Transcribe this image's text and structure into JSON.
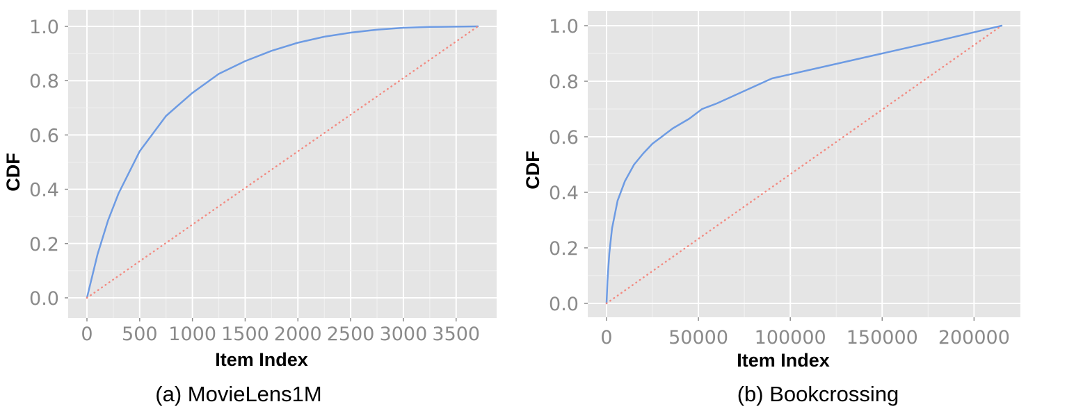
{
  "figure": {
    "captions": [
      "(a) MovieLens1M",
      "(b) Bookcrossing"
    ]
  },
  "chart_data": [
    {
      "type": "line",
      "title": "",
      "caption": "(a) MovieLens1M",
      "xlabel": "Item Index",
      "ylabel": "CDF",
      "xlim": [
        0,
        3706
      ],
      "ylim": [
        0,
        1
      ],
      "xticks": [
        0,
        500,
        1000,
        1500,
        2000,
        2500,
        3000,
        3500
      ],
      "xtick_labels": [
        "0",
        "500",
        "1000",
        "1500",
        "2000",
        "2500",
        "3000",
        "3500"
      ],
      "yticks": [
        0,
        0.2,
        0.4,
        0.6,
        0.8,
        1
      ],
      "ytick_labels": [
        "0.0",
        "0.2",
        "0.4",
        "0.6",
        "0.8",
        "1.0"
      ],
      "grid": true,
      "background": "#e5e5e5",
      "series": [
        {
          "style": "solid",
          "color": "#6d9be3",
          "x": [
            0,
            100,
            200,
            300,
            500,
            750,
            1000,
            1250,
            1500,
            1750,
            2000,
            2250,
            2500,
            2750,
            3000,
            3250,
            3500,
            3706
          ],
          "y": [
            0,
            0.16,
            0.285,
            0.385,
            0.54,
            0.67,
            0.755,
            0.825,
            0.872,
            0.91,
            0.94,
            0.962,
            0.977,
            0.988,
            0.995,
            0.998,
            0.999,
            1.0
          ]
        },
        {
          "style": "dotted",
          "color": "#f28b82",
          "x": [
            0,
            3706
          ],
          "y": [
            0,
            1
          ]
        }
      ]
    },
    {
      "type": "line",
      "title": "",
      "caption": "(b) Bookcrossing",
      "xlabel": "Item Index",
      "ylabel": "CDF",
      "xlim": [
        0,
        215000
      ],
      "ylim": [
        0,
        1
      ],
      "xticks": [
        0,
        50000,
        100000,
        150000,
        200000
      ],
      "xtick_labels": [
        "0",
        "50000",
        "100000",
        "150000",
        "200000"
      ],
      "yticks": [
        0,
        0.2,
        0.4,
        0.6,
        0.8,
        1
      ],
      "ytick_labels": [
        "0.0",
        "0.2",
        "0.4",
        "0.6",
        "0.8",
        "1.0"
      ],
      "grid": true,
      "background": "#e5e5e5",
      "series": [
        {
          "style": "solid",
          "color": "#6d9be3",
          "x": [
            0,
            500,
            1500,
            3000,
            6000,
            10000,
            15000,
            20000,
            25000,
            30000,
            36000,
            45000,
            52000,
            60000,
            75000,
            90000,
            120000,
            150000,
            180000,
            215000
          ],
          "y": [
            0,
            0.08,
            0.18,
            0.27,
            0.37,
            0.44,
            0.5,
            0.54,
            0.575,
            0.6,
            0.63,
            0.665,
            0.7,
            0.72,
            0.765,
            0.81,
            0.855,
            0.9,
            0.945,
            1.0
          ]
        },
        {
          "style": "dotted",
          "color": "#f28b82",
          "x": [
            0,
            215000
          ],
          "y": [
            0,
            1
          ]
        }
      ]
    }
  ]
}
